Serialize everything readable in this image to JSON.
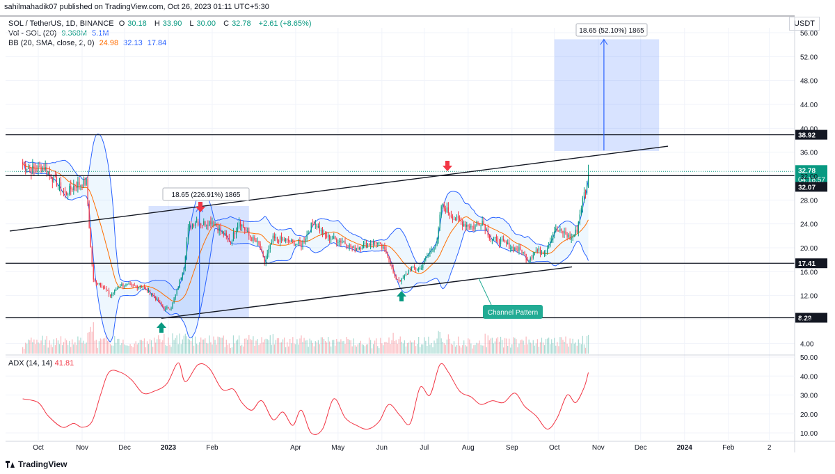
{
  "header": {
    "published": "sahilmahadik07 published on TradingView.com, Oct 26, 2023 01:11 UTC+5:30"
  },
  "legend": {
    "symbol": "SOL / TetherUS, 1D, BINANCE",
    "open_label": "O",
    "open": "30.18",
    "high_label": "H",
    "high": "33.90",
    "low_label": "L",
    "low": "30.00",
    "close_label": "C",
    "close": "32.78",
    "change": "+2.61 (+8.65%)",
    "vol_label": "Vol - SOL (20)",
    "vol_1": "9.368M",
    "vol_2": "5.1M",
    "bb_label": "BB (20, SMA, close, 2, 0)",
    "bb_mid": "24.98",
    "bb_upper": "32.13",
    "bb_lower": "17.84"
  },
  "adx": {
    "label": "ADX (14, 14)",
    "value": "41.81"
  },
  "currency": "USDT",
  "footer": {
    "brand": "TradingView"
  },
  "colors": {
    "up": "#089981",
    "down": "#f23645",
    "bb_band": "#2962ff",
    "bb_mid": "#ff6d00",
    "adx": "#f23645",
    "measure": "#2962ff"
  },
  "chart_data": [
    {
      "type": "candlestick",
      "title": "SOL / TetherUS, 1D, BINANCE",
      "y_ticks": [
        "4.00",
        "8.00",
        "12.00",
        "16.00",
        "20.00",
        "24.00",
        "28.00",
        "32.00",
        "36.00",
        "40.00",
        "44.00",
        "48.00",
        "52.00",
        "56.00"
      ],
      "ylim": [
        2.5,
        58
      ],
      "x_ticks": [
        "Oct",
        "Nov",
        "Dec",
        "2023",
        "Feb",
        "Apr",
        "May",
        "Jun",
        "Jul",
        "Aug",
        "Sep",
        "Oct",
        "Nov",
        "Dec",
        "2024",
        "Feb",
        "2"
      ],
      "x_tick_dates": [
        "2022-10-01",
        "2022-11-01",
        "2022-12-01",
        "2023-01-01",
        "2023-02-01",
        "2023-04-01",
        "2023-05-01",
        "2023-06-01",
        "2023-07-01",
        "2023-08-01",
        "2023-09-01",
        "2023-10-01",
        "2023-11-01",
        "2023-12-01",
        "2024-01-01",
        "2024-02-01",
        "2024-03-01"
      ],
      "price_levels": [
        {
          "label": "38.92",
          "value": 38.92,
          "style": "line"
        },
        {
          "label": "32.78",
          "value": 32.78,
          "style": "current"
        },
        {
          "label": "04:18:57",
          "value": 32.78,
          "style": "countdown"
        },
        {
          "label": "32.07",
          "value": 32.07,
          "style": "line"
        },
        {
          "label": "17.41",
          "value": 17.41,
          "style": "line"
        },
        {
          "label": "8.29",
          "value": 8.29,
          "style": "line"
        }
      ],
      "close_series": [
        [
          "2022-09-20",
          34.0
        ],
        [
          "2022-09-28",
          33.0
        ],
        [
          "2022-10-05",
          33.5
        ],
        [
          "2022-10-12",
          31.5
        ],
        [
          "2022-10-20",
          29.0
        ],
        [
          "2022-10-27",
          30.5
        ],
        [
          "2022-11-04",
          31.0
        ],
        [
          "2022-11-07",
          20.0
        ],
        [
          "2022-11-09",
          14.5
        ],
        [
          "2022-11-14",
          14.0
        ],
        [
          "2022-11-21",
          12.0
        ],
        [
          "2022-11-28",
          13.8
        ],
        [
          "2022-12-06",
          13.6
        ],
        [
          "2022-12-14",
          13.5
        ],
        [
          "2022-12-22",
          11.8
        ],
        [
          "2022-12-29",
          9.8
        ],
        [
          "2023-01-03",
          10.0
        ],
        [
          "2023-01-08",
          13.5
        ],
        [
          "2023-01-12",
          17.0
        ],
        [
          "2023-01-15",
          23.0
        ],
        [
          "2023-01-20",
          24.5
        ],
        [
          "2023-01-25",
          24.0
        ],
        [
          "2023-02-01",
          24.5
        ],
        [
          "2023-02-08",
          22.5
        ],
        [
          "2023-02-14",
          21.0
        ],
        [
          "2023-02-20",
          24.5
        ],
        [
          "2023-02-27",
          22.0
        ],
        [
          "2023-03-06",
          20.5
        ],
        [
          "2023-03-10",
          17.5
        ],
        [
          "2023-03-16",
          21.5
        ],
        [
          "2023-03-25",
          21.2
        ],
        [
          "2023-04-05",
          20.5
        ],
        [
          "2023-04-14",
          24.5
        ],
        [
          "2023-04-21",
          22.0
        ],
        [
          "2023-04-28",
          21.5
        ],
        [
          "2023-05-05",
          21.0
        ],
        [
          "2023-05-12",
          19.8
        ],
        [
          "2023-05-20",
          20.5
        ],
        [
          "2023-05-28",
          21.0
        ],
        [
          "2023-06-05",
          19.0
        ],
        [
          "2023-06-10",
          15.0
        ],
        [
          "2023-06-15",
          14.5
        ],
        [
          "2023-06-21",
          16.5
        ],
        [
          "2023-06-28",
          16.5
        ],
        [
          "2023-07-04",
          19.0
        ],
        [
          "2023-07-10",
          21.0
        ],
        [
          "2023-07-13",
          27.0
        ],
        [
          "2023-07-16",
          26.5
        ],
        [
          "2023-07-22",
          25.0
        ],
        [
          "2023-07-29",
          24.0
        ],
        [
          "2023-08-05",
          23.5
        ],
        [
          "2023-08-11",
          24.5
        ],
        [
          "2023-08-17",
          21.5
        ],
        [
          "2023-08-25",
          21.0
        ],
        [
          "2023-09-01",
          20.0
        ],
        [
          "2023-09-08",
          19.5
        ],
        [
          "2023-09-12",
          18.0
        ],
        [
          "2023-09-18",
          19.5
        ],
        [
          "2023-09-25",
          19.5
        ],
        [
          "2023-10-01",
          23.0
        ],
        [
          "2023-10-08",
          22.5
        ],
        [
          "2023-10-13",
          21.5
        ],
        [
          "2023-10-17",
          23.0
        ],
        [
          "2023-10-20",
          27.0
        ],
        [
          "2023-10-22",
          29.0
        ],
        [
          "2023-10-24",
          30.2
        ],
        [
          "2023-10-25",
          32.78
        ]
      ],
      "annotations": [
        {
          "text": "18.65 (226.91%) 1865"
        },
        {
          "text": "18.65 (52.10%) 1865"
        },
        {
          "text": "Channel Pattern"
        }
      ]
    },
    {
      "type": "line",
      "title": "ADX (14, 14)",
      "y_ticks": [
        "10.00",
        "20.00",
        "30.00",
        "40.00",
        "50.00"
      ],
      "ylim": [
        5,
        52
      ],
      "series": [
        {
          "name": "ADX (14, 14)",
          "x": [
            "2022-09-20",
            "2022-10-01",
            "2022-10-08",
            "2022-10-18",
            "2022-10-26",
            "2022-11-01",
            "2022-11-08",
            "2022-11-14",
            "2022-11-20",
            "2022-11-28",
            "2022-12-06",
            "2022-12-14",
            "2022-12-22",
            "2022-12-31",
            "2023-01-08",
            "2023-01-13",
            "2023-01-22",
            "2023-01-30",
            "2023-02-08",
            "2023-02-16",
            "2023-02-22",
            "2023-03-01",
            "2023-03-08",
            "2023-03-16",
            "2023-03-23",
            "2023-03-30",
            "2023-04-05",
            "2023-04-12",
            "2023-04-20",
            "2023-04-28",
            "2023-05-06",
            "2023-05-14",
            "2023-05-22",
            "2023-05-30",
            "2023-06-06",
            "2023-06-14",
            "2023-06-21",
            "2023-06-28",
            "2023-07-05",
            "2023-07-12",
            "2023-07-18",
            "2023-07-26",
            "2023-08-03",
            "2023-08-10",
            "2023-08-18",
            "2023-08-26",
            "2023-09-03",
            "2023-09-10",
            "2023-09-18",
            "2023-09-26",
            "2023-10-03",
            "2023-10-10",
            "2023-10-16",
            "2023-10-22",
            "2023-10-25"
          ],
          "values": [
            28,
            26,
            19,
            13,
            15,
            13,
            16,
            30,
            42,
            42,
            38,
            31,
            32,
            36,
            47,
            37,
            46,
            44,
            33,
            33,
            26,
            22,
            27,
            17,
            21,
            14,
            22,
            10,
            12,
            28,
            18,
            14,
            12,
            16,
            25,
            19,
            15,
            34,
            30,
            46,
            42,
            32,
            29,
            25,
            27,
            26,
            31,
            24,
            19,
            12,
            18,
            30,
            26,
            34,
            41.81
          ]
        }
      ]
    }
  ]
}
